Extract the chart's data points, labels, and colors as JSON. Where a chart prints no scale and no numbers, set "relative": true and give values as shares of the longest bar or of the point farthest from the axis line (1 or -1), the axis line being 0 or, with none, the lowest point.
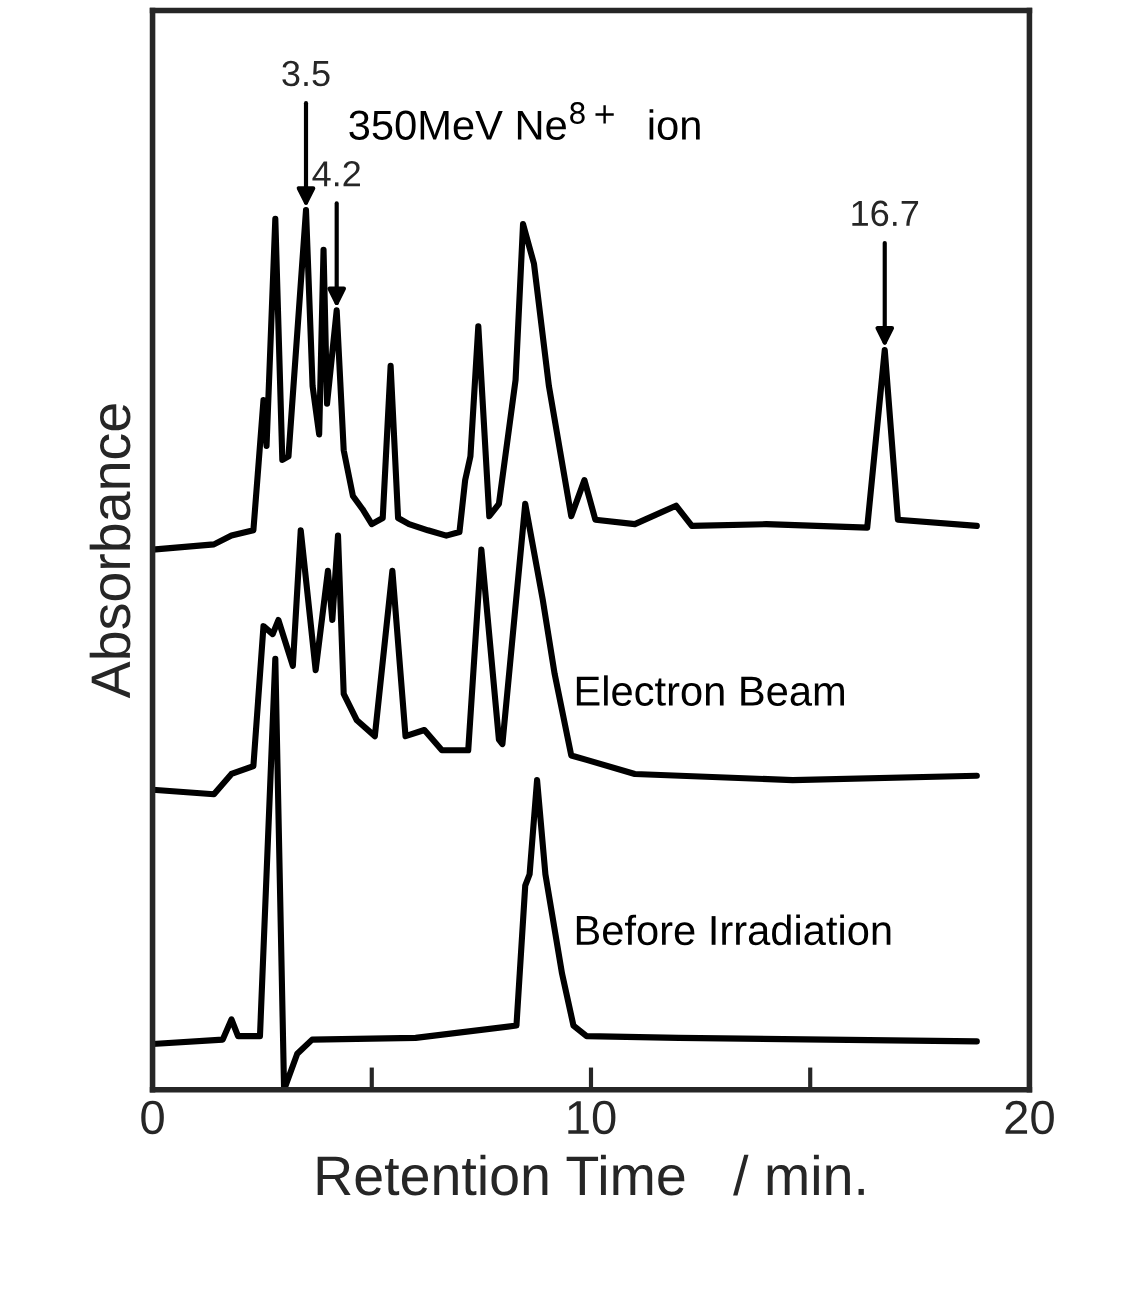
{
  "chart_data": {
    "type": "line",
    "relative": true,
    "xlabel": "Retention Time   / min.",
    "ylabel": "Absorbance",
    "xlim": [
      0,
      20
    ],
    "xticks": [
      0,
      {
        "value": 5,
        "label": null
      },
      10,
      {
        "value": 15,
        "label": null
      },
      20
    ],
    "tick_labels": "x",
    "grid": false,
    "legend": false,
    "marker": "none",
    "line_style": "solid",
    "series": [
      {
        "name": "350MeV Ne$^{8+}$  ion",
        "color": "#000000",
        "x": [
          0,
          1.4,
          1.8,
          2.3,
          2.4,
          2.53,
          2.6,
          2.8,
          2.96,
          3.1,
          3.5,
          3.65,
          3.8,
          3.9,
          3.98,
          4.2,
          4.36,
          4.57,
          4.79,
          5.0,
          5.25,
          5.43,
          5.6,
          5.85,
          6.28,
          6.7,
          7.0,
          7.13,
          7.25,
          7.43,
          7.68,
          7.9,
          8.28,
          8.45,
          8.7,
          9.04,
          9.55,
          9.85,
          10.1,
          11.0,
          11.94,
          12.3,
          14.0,
          16.3,
          16.7,
          17.0,
          18.8
        ],
        "values": [
          0.614,
          0.62,
          0.63,
          0.636,
          0.7,
          0.784,
          0.732,
          0.99,
          0.716,
          0.72,
          1.0,
          0.8,
          0.745,
          0.955,
          0.78,
          0.886,
          0.727,
          0.675,
          0.66,
          0.643,
          0.65,
          0.823,
          0.65,
          0.643,
          0.636,
          0.63,
          0.634,
          0.693,
          0.72,
          0.868,
          0.652,
          0.666,
          0.807,
          0.984,
          0.939,
          0.8,
          0.652,
          0.693,
          0.648,
          0.643,
          0.664,
          0.641,
          0.643,
          0.639,
          0.841,
          0.648,
          0.641
        ]
      },
      {
        "name": "Electron Beam",
        "color": "#000000",
        "x": [
          0,
          1.4,
          1.8,
          2.3,
          2.53,
          2.74,
          2.87,
          3.2,
          3.38,
          3.72,
          4.0,
          4.1,
          4.23,
          4.36,
          4.66,
          5.07,
          5.47,
          5.77,
          6.2,
          6.6,
          7.2,
          7.5,
          7.9,
          7.98,
          8.5,
          8.9,
          9.17,
          9.55,
          9.9,
          11.0,
          14.6,
          18.8
        ],
        "values": [
          0.341,
          0.336,
          0.359,
          0.368,
          0.527,
          0.518,
          0.534,
          0.482,
          0.636,
          0.477,
          0.59,
          0.534,
          0.63,
          0.45,
          0.42,
          0.402,
          0.59,
          0.402,
          0.409,
          0.386,
          0.386,
          0.614,
          0.398,
          0.393,
          0.666,
          0.557,
          0.473,
          0.38,
          0.375,
          0.359,
          0.352,
          0.357
        ]
      },
      {
        "name": "Before Irradiation",
        "color": "#000000",
        "x": [
          0,
          1.6,
          1.8,
          1.95,
          2.45,
          2.8,
          3.0,
          3.3,
          3.64,
          6.0,
          8.3,
          8.5,
          8.6,
          8.77,
          8.96,
          9.34,
          9.6,
          9.9,
          12.0,
          18.8
        ],
        "values": [
          0.052,
          0.057,
          0.08,
          0.061,
          0.061,
          0.49,
          0.0,
          0.041,
          0.057,
          0.059,
          0.073,
          0.232,
          0.245,
          0.352,
          0.245,
          0.132,
          0.073,
          0.061,
          0.059,
          0.055
        ]
      }
    ],
    "annotations": [
      {
        "text": "3.5",
        "x": 3.5,
        "y": 1.0
      },
      {
        "text": "4.2",
        "x": 4.2,
        "y": 0.886
      },
      {
        "text": "16.7",
        "x": 16.7,
        "y": 0.841
      }
    ]
  }
}
